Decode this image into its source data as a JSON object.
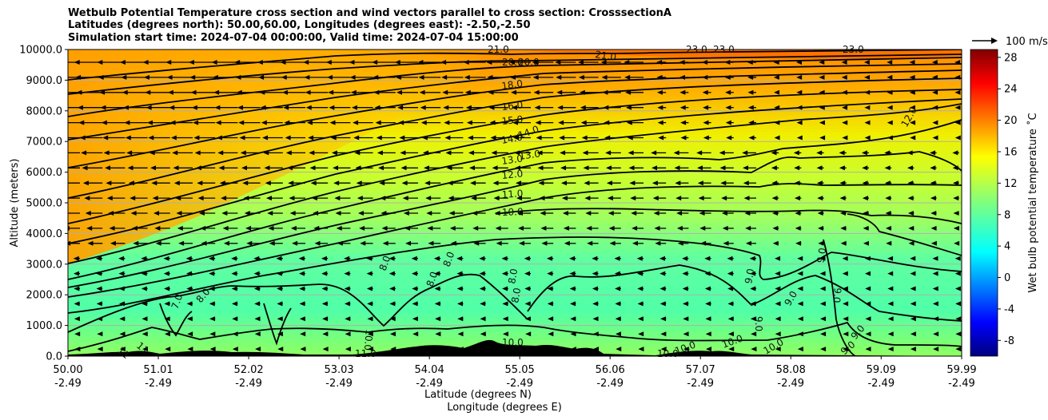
{
  "chart_data": {
    "type": "contour",
    "title": [
      "Wetbulb Potential Temperature cross section and wind vectors parallel to cross section: CrosssectionA",
      "Latitudes (degrees north): 50.00,60.00, Longitudes (degrees east): -2.50,-2.50",
      "Simulation start time: 2024-07-04 00:00:00, Valid time: 2024-07-04 15:00:00"
    ],
    "ylabel": "Altitude (meters)",
    "xlabel_lat": "Latitude (degrees N)",
    "xlabel_lon": "Longitude (degrees E)",
    "xlim": [
      50.0,
      59.99
    ],
    "ylim": [
      0,
      10000
    ],
    "yticks": [
      "0.0",
      "1000.0",
      "2000.0",
      "3000.0",
      "4000.0",
      "5000.0",
      "6000.0",
      "7000.0",
      "8000.0",
      "9000.0",
      "10000.0"
    ],
    "xticks_lat": [
      "50.00",
      "51.01",
      "52.02",
      "53.03",
      "54.04",
      "55.05",
      "56.06",
      "57.07",
      "58.08",
      "59.09",
      "59.99"
    ],
    "xticks_lon": [
      "-2.49",
      "-2.49",
      "-2.49",
      "-2.49",
      "-2.49",
      "-2.49",
      "-2.49",
      "-2.49",
      "-2.49",
      "-2.49",
      "-2.49"
    ],
    "grid": "horizontal",
    "colorbar": {
      "label": "Wet bulb potential temperature ˚C",
      "range": [
        -10,
        29
      ],
      "ticks": [
        "-8",
        "-4",
        "0",
        "4",
        "8",
        "12",
        "16",
        "20",
        "24",
        "28"
      ],
      "colormap": "jet"
    },
    "vector_key": "100 m/s",
    "contour_labels": [
      "21.0",
      "20.0",
      "20.0",
      "21.0",
      "23.0",
      "23.0",
      "23.0",
      "18.0",
      "16.0",
      "15.0",
      "14.0",
      "14.0",
      "13.0",
      "13.0",
      "12.0",
      "11.0",
      "10.0",
      "12.0",
      "8.0",
      "8.0",
      "8.0",
      "8.0",
      "7.0",
      "8.0",
      "9.0",
      "9.0",
      "9.0",
      "9.0",
      "8.0",
      "10.0",
      "10.0",
      "10.0",
      "10.0",
      "11",
      "11",
      "11.0",
      "10.0",
      "9.0",
      "9.0",
      "9.0",
      "10.0"
    ]
  }
}
